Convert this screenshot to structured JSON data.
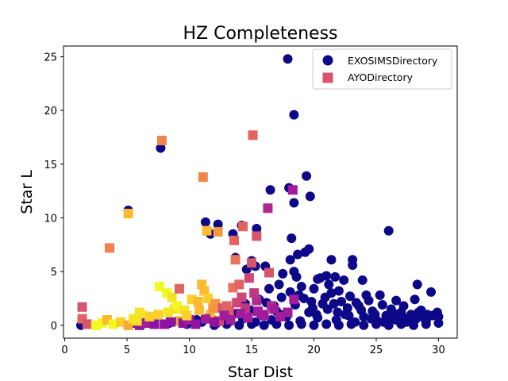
{
  "chart_data": {
    "type": "scatter",
    "title": "HZ Completeness",
    "xlabel": "Star Dist",
    "ylabel": "Star L",
    "xlim": [
      -0.1,
      31.5
    ],
    "ylim": [
      -1.2,
      26.0
    ],
    "xticks": [
      0,
      5,
      10,
      15,
      20,
      25,
      30
    ],
    "yticks": [
      0,
      5,
      10,
      15,
      20,
      25
    ],
    "grid": false,
    "legend_position": "top-right",
    "colormap": [
      "#0d0887",
      "#5c01a6",
      "#9c179e",
      "#cc4778",
      "#ed7953",
      "#fdb42f",
      "#f0f921"
    ],
    "series": [
      {
        "name": "EXOSIMSDirectory",
        "marker": "circle",
        "color": "#0d0887",
        "points": [
          [
            1.3,
            0.0
          ],
          [
            3.6,
            7.2
          ],
          [
            5.1,
            10.7
          ],
          [
            7.7,
            16.5
          ],
          [
            11.3,
            9.6
          ],
          [
            11.7,
            8.5
          ],
          [
            12.3,
            9.4
          ],
          [
            13.5,
            8.5
          ],
          [
            13.7,
            6.3
          ],
          [
            14.2,
            9.3
          ],
          [
            15.0,
            6.0
          ],
          [
            15.4,
            9.0
          ],
          [
            15.3,
            5.5
          ],
          [
            14.6,
            5.2
          ],
          [
            16.1,
            5.5
          ],
          [
            16.5,
            12.6
          ],
          [
            17.9,
            24.8
          ],
          [
            18.0,
            12.8
          ],
          [
            18.4,
            19.6
          ],
          [
            18.2,
            8.1
          ],
          [
            18.4,
            11.4
          ],
          [
            19.4,
            13.9
          ],
          [
            19.7,
            12.0
          ],
          [
            18.7,
            6.6
          ],
          [
            19.3,
            6.8
          ],
          [
            19.6,
            7.1
          ],
          [
            18.1,
            6.1
          ],
          [
            18.4,
            5.0
          ],
          [
            20.3,
            4.3
          ],
          [
            21.4,
            6.1
          ],
          [
            21.0,
            4.6
          ],
          [
            21.7,
            4.5
          ],
          [
            22.4,
            4.2
          ],
          [
            23.1,
            5.6
          ],
          [
            23.1,
            6.1
          ],
          [
            23.9,
            4.2
          ],
          [
            25.3,
            2.8
          ],
          [
            26.0,
            8.8
          ],
          [
            28.3,
            3.8
          ],
          [
            29.4,
            3.1
          ],
          [
            24.2,
            2.8
          ],
          [
            26.6,
            2.3
          ],
          [
            27.2,
            1.8
          ],
          [
            28.1,
            2.4
          ],
          [
            29.1,
            1.0
          ],
          [
            29.9,
            1.2
          ],
          [
            30.0,
            0.8
          ],
          [
            4.0,
            0.1
          ],
          [
            5.5,
            0.2
          ],
          [
            6.2,
            0.1
          ],
          [
            7.0,
            0.3
          ],
          [
            8.4,
            0.2
          ],
          [
            9.1,
            0.4
          ],
          [
            9.8,
            0.1
          ],
          [
            10.6,
            0.5
          ],
          [
            11.0,
            0.3
          ],
          [
            11.8,
            0.6
          ],
          [
            12.2,
            0.2
          ],
          [
            12.9,
            0.8
          ],
          [
            13.3,
            0.4
          ],
          [
            13.8,
            1.1
          ],
          [
            14.3,
            0.6
          ],
          [
            14.9,
            1.4
          ],
          [
            15.3,
            0.3
          ],
          [
            15.8,
            0.9
          ],
          [
            16.2,
            2.1
          ],
          [
            16.6,
            0.5
          ],
          [
            17.0,
            1.3
          ],
          [
            17.4,
            2.6
          ],
          [
            17.8,
            0.8
          ],
          [
            18.1,
            3.1
          ],
          [
            18.5,
            1.9
          ],
          [
            18.9,
            0.4
          ],
          [
            19.2,
            2.5
          ],
          [
            19.6,
            1.2
          ],
          [
            20.0,
            3.4
          ],
          [
            20.3,
            0.7
          ],
          [
            20.7,
            2.0
          ],
          [
            21.1,
            1.5
          ],
          [
            21.4,
            3.0
          ],
          [
            21.8,
            0.5
          ],
          [
            22.2,
            2.2
          ],
          [
            22.5,
            1.0
          ],
          [
            22.9,
            2.7
          ],
          [
            23.3,
            0.3
          ],
          [
            23.6,
            1.8
          ],
          [
            24.0,
            0.8
          ],
          [
            24.4,
            2.3
          ],
          [
            24.7,
            1.3
          ],
          [
            25.1,
            0.4
          ],
          [
            25.5,
            1.9
          ],
          [
            25.8,
            0.9
          ],
          [
            26.2,
            1.5
          ],
          [
            26.6,
            0.5
          ],
          [
            27.0,
            1.2
          ],
          [
            27.4,
            0.3
          ],
          [
            27.8,
            1.0
          ],
          [
            28.2,
            0.6
          ],
          [
            28.6,
            1.4
          ],
          [
            29.0,
            0.4
          ],
          [
            29.5,
            0.9
          ],
          [
            30.0,
            0.2
          ],
          [
            12.0,
            0.0
          ],
          [
            13.0,
            0.1
          ],
          [
            14.0,
            0.0
          ],
          [
            15.0,
            0.1
          ],
          [
            16.0,
            0.0
          ],
          [
            17.0,
            0.1
          ],
          [
            18.0,
            0.0
          ],
          [
            19.0,
            0.1
          ],
          [
            20.0,
            0.0
          ],
          [
            21.0,
            0.1
          ],
          [
            22.0,
            0.0
          ],
          [
            23.0,
            0.1
          ],
          [
            24.0,
            0.0
          ],
          [
            25.0,
            0.1
          ],
          [
            26.0,
            0.0
          ],
          [
            27.0,
            0.1
          ],
          [
            28.0,
            0.0
          ],
          [
            29.0,
            0.1
          ],
          [
            16.8,
            1.8
          ],
          [
            17.6,
            1.0
          ],
          [
            18.8,
            2.8
          ],
          [
            19.9,
            1.6
          ],
          [
            20.9,
            2.6
          ],
          [
            21.9,
            1.2
          ],
          [
            22.7,
            1.6
          ],
          [
            23.8,
            1.4
          ],
          [
            24.9,
            1.0
          ],
          [
            25.9,
            0.5
          ],
          [
            26.9,
            0.8
          ],
          [
            27.9,
            0.4
          ],
          [
            28.9,
            0.6
          ],
          [
            14.5,
            2.0
          ],
          [
            15.6,
            2.4
          ],
          [
            16.4,
            3.4
          ],
          [
            17.2,
            3.8
          ],
          [
            19.0,
            3.6
          ],
          [
            20.5,
            4.4
          ],
          [
            21.2,
            3.8
          ],
          [
            22.0,
            3.2
          ],
          [
            18.6,
            4.5
          ],
          [
            17.5,
            4.8
          ],
          [
            19.8,
            2.2
          ],
          [
            20.2,
            1.0
          ],
          [
            21.6,
            2.0
          ],
          [
            22.8,
            0.9
          ],
          [
            23.4,
            2.1
          ],
          [
            24.6,
            0.6
          ],
          [
            25.6,
            0.3
          ],
          [
            26.4,
            1.1
          ],
          [
            27.6,
            0.7
          ],
          [
            28.4,
            1.2
          ]
        ]
      },
      {
        "name": "AYODirectory",
        "marker": "square",
        "color": "#d6556d",
        "points": [
          [
            1.4,
            1.7,
            0.55
          ],
          [
            1.4,
            0.6,
            0.6
          ],
          [
            1.8,
            0.1,
            0.55
          ],
          [
            2.5,
            0.0,
            1.0
          ],
          [
            3.0,
            0.2,
            1.0
          ],
          [
            3.4,
            0.5,
            0.85
          ],
          [
            3.6,
            7.2,
            0.7
          ],
          [
            3.9,
            0.1,
            1.0
          ],
          [
            4.5,
            0.3,
            0.9
          ],
          [
            5.1,
            10.4,
            0.85
          ],
          [
            5.1,
            0.0,
            0.8
          ],
          [
            5.5,
            0.6,
            0.95
          ],
          [
            6.0,
            1.2,
            0.95
          ],
          [
            6.3,
            0.9,
            0.95
          ],
          [
            7.0,
            0.5,
            0.85
          ],
          [
            7.6,
            3.6,
            1.0
          ],
          [
            7.8,
            17.2,
            0.7
          ],
          [
            8.0,
            0.1,
            0.3
          ],
          [
            8.2,
            3.0,
            1.0
          ],
          [
            8.6,
            2.6,
            0.95
          ],
          [
            8.8,
            1.5,
            0.95
          ],
          [
            9.0,
            1.8,
            1.0
          ],
          [
            9.2,
            3.4,
            0.6
          ],
          [
            9.3,
            0.4,
            0.8
          ],
          [
            9.6,
            1.4,
            0.95
          ],
          [
            10.2,
            2.4,
            0.9
          ],
          [
            10.7,
            2.2,
            0.85
          ],
          [
            11.0,
            3.8,
            0.85
          ],
          [
            11.1,
            13.8,
            0.7
          ],
          [
            11.2,
            3.2,
            0.85
          ],
          [
            11.4,
            8.8,
            0.85
          ],
          [
            11.5,
            2.5,
            0.9
          ],
          [
            11.7,
            1.0,
            0.85
          ],
          [
            12.1,
            2.0,
            0.75
          ],
          [
            12.3,
            8.7,
            0.75
          ],
          [
            12.4,
            0.4,
            0.5
          ],
          [
            12.6,
            1.6,
            0.55
          ],
          [
            13.2,
            1.3,
            0.55
          ],
          [
            13.5,
            3.5,
            0.65
          ],
          [
            13.6,
            7.9,
            0.6
          ],
          [
            13.7,
            6.1,
            0.65
          ],
          [
            13.8,
            2.1,
            0.5
          ],
          [
            14.0,
            3.8,
            0.6
          ],
          [
            14.3,
            9.2,
            0.6
          ],
          [
            14.5,
            1.6,
            0.45
          ],
          [
            14.8,
            4.4,
            0.5
          ],
          [
            15.1,
            17.7,
            0.6
          ],
          [
            15.0,
            5.8,
            0.55
          ],
          [
            15.4,
            2.3,
            0.4
          ],
          [
            15.4,
            8.3,
            0.55
          ],
          [
            15.9,
            1.0,
            0.4
          ],
          [
            16.4,
            4.9,
            0.55
          ],
          [
            16.3,
            10.9,
            0.4
          ],
          [
            16.6,
            1.8,
            0.4
          ],
          [
            17.3,
            0.8,
            0.35
          ],
          [
            17.9,
            1.2,
            0.35
          ],
          [
            18.3,
            12.6,
            0.35
          ],
          [
            18.4,
            2.4,
            0.35
          ],
          [
            6.0,
            0.0,
            0.3
          ],
          [
            6.5,
            0.2,
            0.35
          ],
          [
            7.2,
            0.1,
            0.3
          ],
          [
            8.5,
            0.3,
            0.3
          ],
          [
            9.5,
            0.2,
            0.3
          ],
          [
            10.0,
            0.5,
            0.35
          ],
          [
            10.5,
            0.1,
            0.3
          ],
          [
            11.3,
            0.6,
            0.35
          ],
          [
            12.0,
            0.3,
            0.3
          ],
          [
            12.8,
            0.9,
            0.35
          ],
          [
            13.3,
            0.5,
            0.35
          ],
          [
            14.1,
            1.1,
            0.35
          ],
          [
            14.7,
            0.7,
            0.35
          ],
          [
            15.5,
            1.3,
            0.35
          ],
          [
            16.0,
            0.9,
            0.35
          ],
          [
            16.8,
            1.5,
            0.35
          ],
          [
            5.8,
            0.4,
            0.95
          ],
          [
            6.8,
            0.8,
            0.9
          ],
          [
            7.5,
            1.0,
            0.9
          ],
          [
            8.3,
            1.2,
            0.95
          ],
          [
            9.8,
            0.9,
            0.9
          ],
          [
            10.8,
            1.4,
            0.85
          ],
          [
            11.9,
            1.6,
            0.75
          ],
          [
            13.0,
            1.8,
            0.6
          ],
          [
            14.2,
            2.6,
            0.5
          ],
          [
            15.2,
            3.0,
            0.45
          ]
        ]
      }
    ]
  }
}
